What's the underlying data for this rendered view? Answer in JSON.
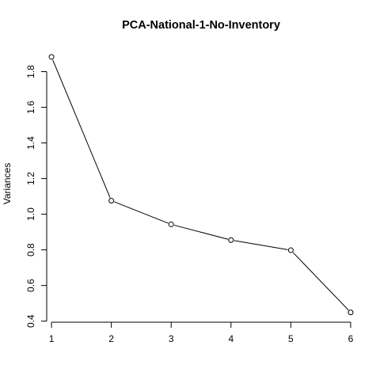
{
  "chart_data": {
    "type": "line",
    "title": "PCA-National-1-No-Inventory",
    "xlabel": "",
    "ylabel": "Variances",
    "x": [
      1,
      2,
      3,
      4,
      5,
      6
    ],
    "values": [
      1.883,
      1.076,
      0.943,
      0.855,
      0.798,
      0.449
    ],
    "xlim": [
      0.92,
      6.08
    ],
    "ylim": [
      0.394,
      1.94
    ],
    "x_ticks": [
      1,
      2,
      3,
      4,
      5,
      6
    ],
    "y_ticks": [
      "0.4",
      "0.6",
      "0.8",
      "1.0",
      "1.2",
      "1.4",
      "1.6",
      "1.8"
    ],
    "markers": "open-circle",
    "grid": false,
    "legend": "none"
  }
}
